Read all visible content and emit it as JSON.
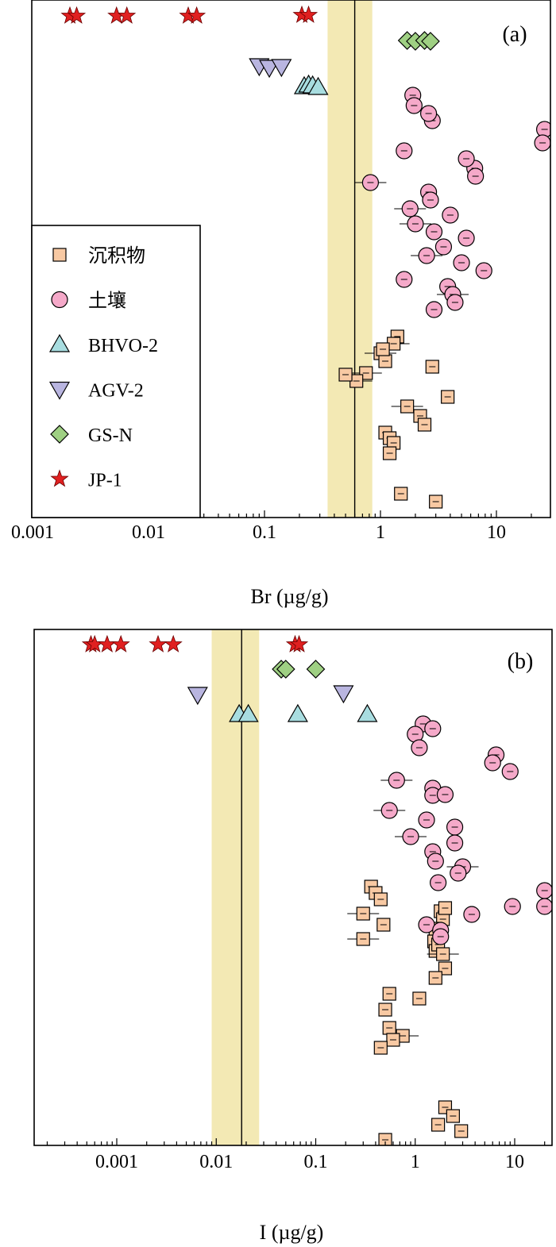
{
  "chart_data": [
    {
      "type": "scatter",
      "panel": "(a)",
      "xlabel": "Br (µg/g)",
      "xscale": "log",
      "xlim": [
        0.001,
        30
      ],
      "xticks": [
        "0.001",
        "0.01",
        "0.1",
        "1",
        "10"
      ],
      "grid": false,
      "legend_position": "bottom-left",
      "reference": {
        "line": 0.6,
        "band": [
          0.35,
          0.85
        ],
        "band_color": "#f3e9b4"
      },
      "series": [
        {
          "name": "沉积物",
          "marker": "square",
          "color": "#f8c9a3",
          "values": [
            1.4,
            1.3,
            1.0,
            1.1,
            1.05,
            0.75,
            0.62,
            0.5,
            1.7,
            2.2,
            2.4,
            1.1,
            1.2,
            1.3,
            1.2,
            1.5,
            3.0,
            3.8,
            2.8
          ]
        },
        {
          "name": "土壤",
          "marker": "circle",
          "color": "#f5a9c9",
          "values": [
            1.9,
            1.95,
            2.8,
            2.6,
            26,
            25,
            1.6,
            6.5,
            5.5,
            6.6,
            0.82,
            2.6,
            2.7,
            1.8,
            4.0,
            2.0,
            2.9,
            5.5,
            3.5,
            2.5,
            5.0,
            7.8,
            1.6,
            3.8,
            4.2,
            4.4,
            2.9
          ]
        },
        {
          "name": "BHVO-2",
          "marker": "triangle-up",
          "color": "#a8dde0",
          "values": [
            0.22,
            0.24,
            0.26,
            0.29
          ]
        },
        {
          "name": "AGV-2",
          "marker": "triangle-down",
          "color": "#b9b5e0",
          "values": [
            0.09,
            0.11,
            0.14
          ]
        },
        {
          "name": "GS-N",
          "marker": "diamond",
          "color": "#9fd083",
          "values": [
            1.7,
            2.0,
            2.4,
            2.7
          ]
        },
        {
          "name": "JP-1",
          "marker": "star",
          "color": "#e02020",
          "values": [
            0.0021,
            0.0024,
            0.0053,
            0.0065,
            0.022,
            0.026,
            0.21,
            0.24
          ]
        }
      ]
    },
    {
      "type": "scatter",
      "panel": "(b)",
      "xlabel": "I (µg/g)",
      "xscale": "log",
      "xlim": [
        0.00012,
        25
      ],
      "xticks": [
        "0.001",
        "0.01",
        "0.1",
        "1",
        "10"
      ],
      "grid": false,
      "reference": {
        "line": 0.018,
        "band": [
          0.009,
          0.027
        ],
        "band_color": "#f3e9b4"
      },
      "series": [
        {
          "name": "沉积物",
          "marker": "square",
          "color": "#f8c9a3",
          "values": [
            1.8,
            1.9,
            1.7,
            1.55,
            1.6,
            0.36,
            0.4,
            0.45,
            2.0,
            0.3,
            0.48,
            1.6,
            0.3,
            1.7,
            1.9,
            2.0,
            1.6,
            1.1,
            0.55,
            0.5,
            0.55,
            0.75,
            0.6,
            0.45,
            2.0,
            2.4,
            1.7,
            2.9,
            0.5
          ]
        },
        {
          "name": "土壤",
          "marker": "circle",
          "color": "#f5a9c9",
          "values": [
            1.2,
            1.0,
            1.1,
            1.5,
            6.5,
            6.0,
            9.0,
            0.65,
            1.5,
            1.5,
            2.0,
            0.55,
            1.3,
            2.5,
            0.9,
            2.5,
            1.5,
            1.6,
            3.0,
            2.7,
            1.7,
            20,
            20,
            3.7,
            9.5,
            1.3,
            1.8,
            1.8
          ]
        },
        {
          "name": "BHVO-2",
          "marker": "triangle-up",
          "color": "#a8dde0",
          "values": [
            0.017,
            0.021,
            0.066,
            0.33
          ]
        },
        {
          "name": "AGV-2",
          "marker": "triangle-down",
          "color": "#b9b5e0",
          "values": [
            0.0065,
            0.19
          ]
        },
        {
          "name": "GS-N",
          "marker": "diamond",
          "color": "#9fd083",
          "values": [
            0.045,
            0.05,
            0.1
          ]
        },
        {
          "name": "JP-1",
          "marker": "star",
          "color": "#e02020",
          "values": [
            0.00055,
            0.0006,
            0.0008,
            0.0011,
            0.0026,
            0.0037,
            0.062,
            0.068
          ]
        }
      ]
    }
  ]
}
